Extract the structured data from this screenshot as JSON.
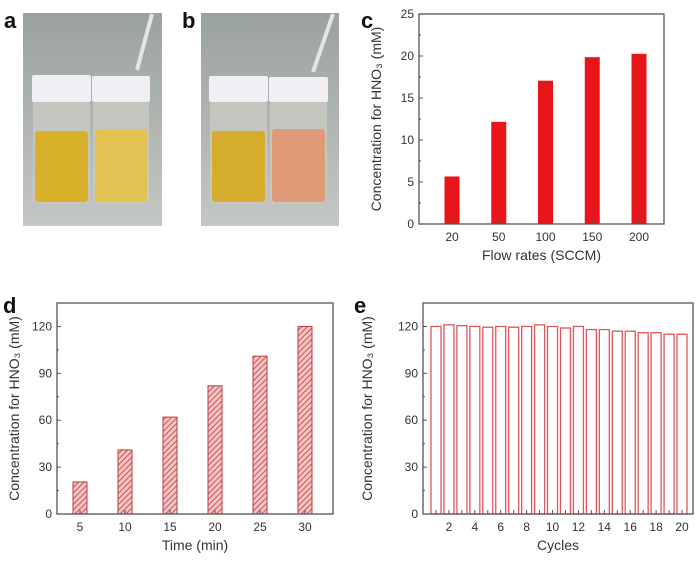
{
  "panels": {
    "a": "a",
    "b": "b",
    "c": "c",
    "d": "d",
    "e": "e"
  },
  "photos": {
    "a": {
      "left_liquid": "#d9b02a",
      "right_liquid": "#e2c253"
    },
    "b": {
      "left_liquid": "#d6ac2c",
      "right_liquid": "#e09a78"
    }
  },
  "chart_data": [
    {
      "panel": "c",
      "type": "bar",
      "categories": [
        "20",
        "50",
        "100",
        "150",
        "200"
      ],
      "values": [
        5.6,
        12.1,
        17.0,
        19.8,
        20.2
      ],
      "xlabel": "Flow rates (SCCM)",
      "ylabel": "Concentration for HNO₃ (mM)",
      "ylim": [
        0,
        25
      ],
      "yticks": [
        0,
        5,
        10,
        15,
        20,
        25
      ],
      "fill": "solid",
      "color": "#e8161b",
      "grid": false
    },
    {
      "panel": "d",
      "type": "bar",
      "categories": [
        "5",
        "10",
        "15",
        "20",
        "25",
        "30"
      ],
      "values": [
        20.5,
        41,
        62,
        82,
        101,
        120
      ],
      "xlabel": "Time (min)",
      "ylabel": "Concentration for HNO₃ (mM)",
      "ylim": [
        0,
        135
      ],
      "yticks": [
        0,
        30,
        60,
        90,
        120
      ],
      "fill": "hatched",
      "color": "#c0393f",
      "grid": false
    },
    {
      "panel": "e",
      "type": "bar",
      "categories": [
        "1",
        "2",
        "3",
        "4",
        "5",
        "6",
        "7",
        "8",
        "9",
        "10",
        "11",
        "12",
        "13",
        "14",
        "15",
        "16",
        "17",
        "18",
        "19",
        "20"
      ],
      "tick_labels": [
        "2",
        "4",
        "6",
        "8",
        "10",
        "12",
        "14",
        "16",
        "18",
        "20"
      ],
      "values": [
        120,
        121,
        120.5,
        120,
        119.5,
        120,
        119.5,
        120,
        121,
        120,
        119,
        120,
        118,
        118,
        117,
        117,
        116,
        116,
        115,
        115
      ],
      "xlabel": "Cycles",
      "ylabel": "Concentration for HNO₃ (mM)",
      "ylim": [
        0,
        135
      ],
      "yticks": [
        0,
        30,
        60,
        90,
        120
      ],
      "fill": "outline",
      "color": "#e0565b",
      "grid": false
    }
  ]
}
